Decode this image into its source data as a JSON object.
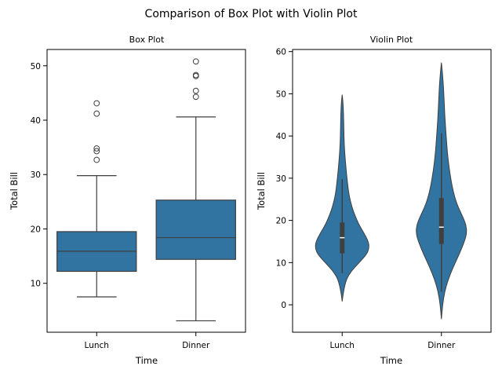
{
  "figure": {
    "title": "Comparison of Box Plot with Violin Plot",
    "fill_color": "#3274a1",
    "line_color": "#3f3f3f"
  },
  "chart_data": [
    {
      "type": "box",
      "title": "Box Plot",
      "xlabel": "Time",
      "ylabel": "Total Bill",
      "categories": [
        "Lunch",
        "Dinner"
      ],
      "ylim": [
        1,
        53
      ],
      "yticks": [
        10,
        20,
        30,
        40,
        50
      ],
      "grid": false,
      "boxes": [
        {
          "category": "Lunch",
          "whisker_low": 7.5,
          "q1": 12.2,
          "median": 15.9,
          "q3": 19.5,
          "whisker_high": 29.8,
          "outliers": [
            32.7,
            34.3,
            34.8,
            41.2,
            43.1
          ]
        },
        {
          "category": "Dinner",
          "whisker_low": 3.1,
          "q1": 14.4,
          "median": 18.4,
          "q3": 25.3,
          "whisker_high": 40.6,
          "outliers": [
            44.3,
            45.4,
            48.1,
            48.3,
            50.8
          ]
        }
      ]
    },
    {
      "type": "violin",
      "title": "Violin Plot",
      "xlabel": "Time",
      "ylabel": "Total Bill",
      "categories": [
        "Lunch",
        "Dinner"
      ],
      "ylim": [
        -6.5,
        60.5
      ],
      "yticks": [
        0,
        10,
        20,
        30,
        40,
        50,
        60
      ],
      "grid": false,
      "violins": [
        {
          "category": "Lunch",
          "min": 0.8,
          "max": 49.8,
          "profile": [
            [
              0.8,
              0.0
            ],
            [
              3,
              0.03
            ],
            [
              6,
              0.1
            ],
            [
              8,
              0.23
            ],
            [
              10,
              0.43
            ],
            [
              12,
              0.62
            ],
            [
              13.5,
              0.68
            ],
            [
              15,
              0.66
            ],
            [
              17,
              0.55
            ],
            [
              19,
              0.42
            ],
            [
              21,
              0.33
            ],
            [
              23,
              0.25
            ],
            [
              26,
              0.17
            ],
            [
              30,
              0.12
            ],
            [
              34,
              0.08
            ],
            [
              38,
              0.05
            ],
            [
              42,
              0.04
            ],
            [
              45,
              0.035
            ],
            [
              48,
              0.02
            ],
            [
              49.8,
              0.0
            ]
          ],
          "q1": 12.2,
          "median": 15.9,
          "q3": 19.5,
          "whisker_low": 7.5,
          "whisker_high": 29.8
        },
        {
          "category": "Dinner",
          "min": -3.4,
          "max": 57.4,
          "profile": [
            [
              -3.4,
              0.0
            ],
            [
              0,
              0.03
            ],
            [
              3,
              0.08
            ],
            [
              6,
              0.17
            ],
            [
              9,
              0.3
            ],
            [
              12,
              0.45
            ],
            [
              15,
              0.58
            ],
            [
              17,
              0.64
            ],
            [
              19,
              0.62
            ],
            [
              21,
              0.53
            ],
            [
              23,
              0.43
            ],
            [
              25,
              0.35
            ],
            [
              28,
              0.27
            ],
            [
              32,
              0.2
            ],
            [
              36,
              0.15
            ],
            [
              40,
              0.12
            ],
            [
              44,
              0.09
            ],
            [
              48,
              0.07
            ],
            [
              52,
              0.05
            ],
            [
              55,
              0.025
            ],
            [
              57.4,
              0.0
            ]
          ],
          "q1": 14.4,
          "median": 18.4,
          "q3": 25.3,
          "whisker_low": 3.1,
          "whisker_high": 40.6
        }
      ]
    }
  ]
}
